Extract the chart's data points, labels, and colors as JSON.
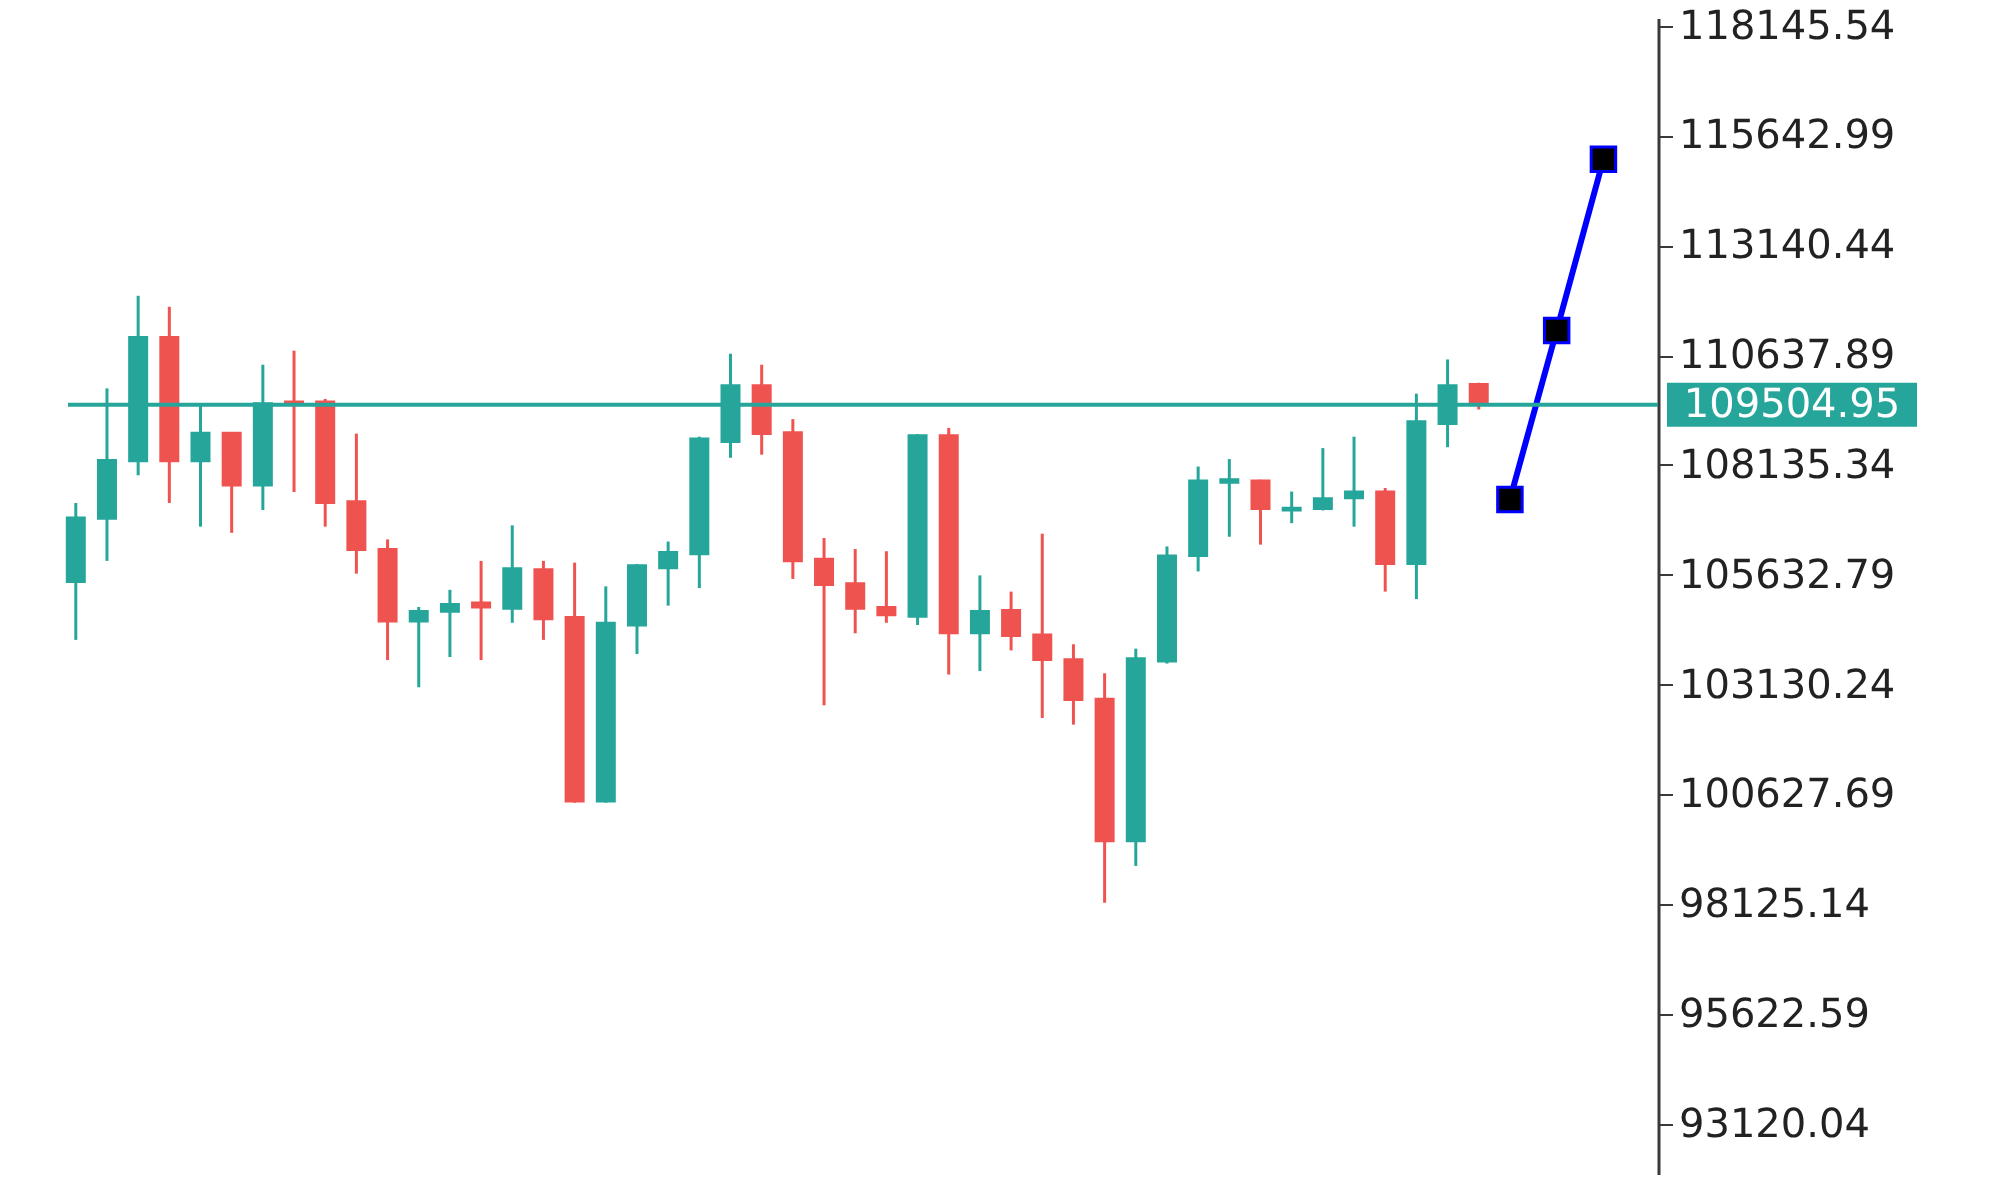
{
  "chart_data": {
    "type": "candlestick",
    "categories": [
      null,
      null,
      null,
      null,
      null,
      null,
      null,
      null,
      null,
      null,
      null,
      null,
      null,
      null,
      null,
      null,
      null,
      null,
      null,
      null,
      null,
      null,
      null,
      null,
      null,
      null,
      null,
      null,
      null,
      null,
      null,
      null,
      null,
      null,
      null,
      null,
      null,
      null,
      null,
      null,
      null,
      null,
      null,
      null,
      null,
      null,
      null,
      null,
      null,
      null,
      null,
      null,
      null,
      null,
      null,
      null,
      null,
      null,
      null,
      null,
      null,
      null,
      null,
      null,
      null,
      null,
      null,
      null,
      null,
      null,
      null,
      null,
      null,
      null,
      null,
      null,
      null,
      null,
      null,
      null,
      null,
      null,
      null,
      null,
      null,
      null,
      null,
      null,
      null,
      null,
      null,
      null,
      null,
      null,
      null,
      null,
      null,
      null,
      null,
      null,
      null,
      null
    ],
    "ohlc": [
      [
        105470,
        107270,
        104150,
        106940
      ],
      null,
      [
        106910,
        109880,
        105950,
        108250
      ],
      null,
      [
        108220,
        111990,
        107900,
        111050
      ],
      null,
      [
        111050,
        111740,
        107270,
        108220
      ],
      null,
      [
        108220,
        109540,
        106730,
        108870
      ],
      null,
      [
        108870,
        108870,
        106590,
        107670
      ],
      null,
      [
        107670,
        110420,
        107110,
        109540
      ],
      null,
      [
        109580,
        110740,
        107520,
        109510
      ],
      null,
      [
        109580,
        109640,
        106730,
        107270
      ],
      null,
      [
        107310,
        108850,
        105660,
        106200
      ],
      null,
      [
        106220,
        106440,
        103690,
        104570
      ],
      null,
      [
        104570,
        104900,
        103070,
        104810
      ],
      null,
      [
        104790,
        105290,
        103760,
        104970
      ],
      null,
      [
        105000,
        105950,
        103690,
        104890
      ],
      null,
      [
        104860,
        106760,
        104540,
        105780
      ],
      null,
      [
        105760,
        105950,
        104150,
        104620
      ],
      null,
      [
        104670,
        105910,
        100440,
        100470
      ],
      null,
      [
        100470,
        105370,
        100440,
        104540
      ],
      null,
      [
        104480,
        105880,
        103830,
        105850
      ],
      null,
      [
        105780,
        106390,
        104930,
        106150
      ],
      null,
      [
        106100,
        108780,
        105330,
        108740
      ],
      null,
      [
        108660,
        110670,
        108300,
        109950
      ],
      null,
      [
        109950,
        110420,
        108370,
        108840
      ],
      null,
      [
        108880,
        109180,
        105540,
        105940
      ],
      null,
      [
        106000,
        106470,
        102660,
        105400
      ],
      null,
      [
        105440,
        106220,
        104300,
        104860
      ],
      null,
      [
        104900,
        106170,
        104540,
        104710
      ],
      null,
      [
        104680,
        108840,
        104490,
        108810
      ],
      null,
      [
        108810,
        108980,
        103360,
        104300
      ],
      null,
      [
        104300,
        105620,
        103440,
        104810
      ],
      null,
      [
        104830,
        105250,
        103910,
        104240
      ],
      null,
      [
        104270,
        106570,
        102370,
        103690
      ],
      null,
      [
        103710,
        104050,
        102220,
        102780
      ],
      null,
      [
        102810,
        103390,
        98160,
        99560
      ],
      null,
      [
        99560,
        103950,
        99000,
        103730
      ],
      null,
      [
        103660,
        106280,
        103610,
        106070
      ],
      null,
      [
        106060,
        108100,
        105710,
        107780
      ],
      null,
      [
        107730,
        108270,
        106500,
        107810
      ],
      null,
      [
        107780,
        107800,
        106320,
        107130
      ],
      null,
      [
        107100,
        107530,
        106810,
        107160
      ],
      null,
      [
        107130,
        108520,
        107100,
        107380
      ],
      null,
      [
        107380,
        108780,
        106730,
        107530
      ],
      null,
      [
        107530,
        107610,
        105250,
        105880
      ],
      null,
      [
        105880,
        109760,
        105080,
        109130
      ],
      null,
      [
        109070,
        110540,
        108540,
        109950
      ],
      null,
      [
        109980,
        110010,
        109400,
        109500
      ],
      null,
      null,
      null,
      null,
      null,
      null,
      null,
      null,
      null,
      null,
      null
    ],
    "colors": [
      "#26a69a",
      null,
      "#26a69a",
      null,
      "#26a69a",
      null,
      "#ef5350",
      null,
      "#26a69a",
      null,
      "#ef5350",
      null,
      "#26a69a",
      null,
      "#ef5350",
      null,
      "#ef5350",
      null,
      "#ef5350",
      null,
      "#ef5350",
      null,
      "#26a69a",
      null,
      "#26a69a",
      null,
      "#ef5350",
      null,
      "#26a69a",
      null,
      "#ef5350",
      null,
      "#ef5350",
      null,
      "#26a69a",
      null,
      "#26a69a",
      null,
      "#26a69a",
      null,
      "#26a69a",
      null,
      "#26a69a",
      null,
      "#ef5350",
      null,
      "#ef5350",
      null,
      "#ef5350",
      null,
      "#ef5350",
      null,
      "#ef5350",
      null,
      "#26a69a",
      null,
      "#ef5350",
      null,
      "#26a69a",
      null,
      "#ef5350",
      null,
      "#ef5350",
      null,
      "#ef5350",
      null,
      "#ef5350",
      null,
      "#26a69a",
      null,
      "#26a69a",
      null,
      "#26a69a",
      null,
      "#26a69a",
      null,
      "#ef5350",
      null,
      "#26a69a",
      null,
      "#26a69a",
      null,
      "#26a69a",
      null,
      "#ef5350",
      null,
      "#26a69a",
      null,
      "#26a69a",
      null,
      "#ef5350",
      null,
      null,
      null,
      null,
      null,
      null,
      null,
      null,
      null,
      null,
      null
    ],
    "series": [
      {
        "type": "line",
        "color": "#0000ff",
        "values": [
          null,
          null,
          null,
          null,
          null,
          null,
          null,
          null,
          null,
          null,
          null,
          null,
          null,
          null,
          null,
          null,
          null,
          null,
          null,
          null,
          null,
          null,
          null,
          null,
          null,
          null,
          null,
          null,
          null,
          null,
          null,
          null,
          null,
          null,
          null,
          null,
          null,
          null,
          null,
          null,
          null,
          null,
          null,
          null,
          null,
          null,
          null,
          null,
          null,
          null,
          null,
          null,
          null,
          null,
          null,
          null,
          null,
          null,
          null,
          null,
          null,
          null,
          null,
          null,
          null,
          null,
          null,
          null,
          null,
          null,
          null,
          null,
          null,
          null,
          null,
          null,
          null,
          null,
          null,
          null,
          null,
          null,
          null,
          null,
          null,
          null,
          null,
          null,
          null,
          null,
          null,
          null,
          107350,
          null,
          null,
          111200,
          null,
          null,
          115100,
          null,
          null,
          null
        ]
      }
    ],
    "marker": "square",
    "ylim": [
      91980,
      118320
    ],
    "yticks": [
      93120.04,
      95622.59,
      98125.14,
      100627.69,
      103130.24,
      105632.79,
      108135.34,
      110637.89,
      113140.44,
      115642.99,
      118145.54
    ],
    "ref_lines": [
      {
        "axis": "y",
        "value": 109504.95,
        "label": "109504.95",
        "color": "#26a69a"
      }
    ]
  }
}
